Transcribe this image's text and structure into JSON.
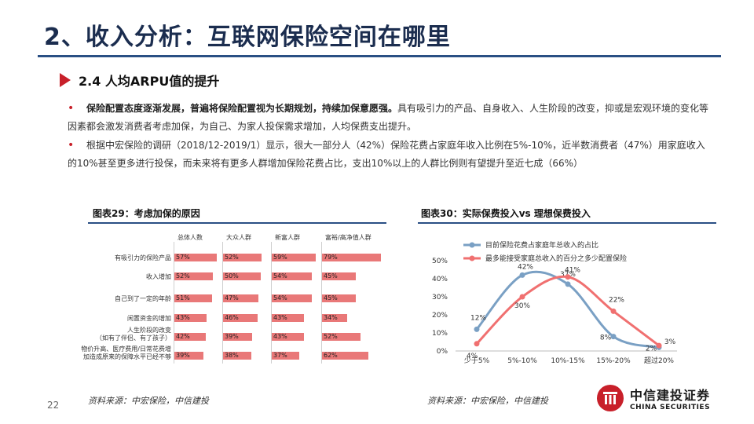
{
  "slide": {
    "title": "2、收入分析：互联网保险空间在哪里",
    "subhead": "2.4 人均ARPU值的提升",
    "page_number": "22"
  },
  "bullets": [
    {
      "bold": "保险配置态度逐渐发展，普遍将保险配置视为长期规划，持续加保意愿强。",
      "rest": "具有吸引力的产品、自身收入、人生阶段的改变，抑或是宏观环境的变化等因素都会激发消费者考虑加保，为自己、为家人投保需求增加，人均保费支出提升。"
    },
    {
      "bold": "",
      "rest": "根据中宏保险的调研（2018/12-2019/1）显示，很大一部分人（42%）保险花费占家庭年收入比例在5%-10%，近半数消费者（47%）用家庭收入的10%甚至更多进行投保，而未来将有更多人群增加保险花费占比，支出10%以上的人群比例则有望提升至近七成（66%）"
    }
  ],
  "fig29": {
    "title": "图表29：考虑加保的原因",
    "source": "资料来源：中宏保险，中信建投"
  },
  "fig30": {
    "title": "图表30：实际保费投入vs 理想保费投入",
    "source": "资料来源：中宏保险，中信建投"
  },
  "logo": {
    "cn": "中信建投证券",
    "en": "CHINA SECURITIES"
  },
  "chart_data": [
    {
      "type": "bar",
      "orientation": "horizontal",
      "title": "图表29：考虑加保的原因",
      "series_names": [
        "总体人数",
        "大众人群",
        "新富人群",
        "富裕/高净值人群"
      ],
      "categories": [
        "有吸引力的保险产品",
        "收入增加",
        "自己到了一定的年龄",
        "闲置资金的增加",
        "人生阶段的改变（如有了伴侣、有了孩子）",
        "物价升高、医疗费用/日常花费增加造成原来的保障水平已经不够"
      ],
      "category_lines": [
        [
          "有吸引力的保险产品"
        ],
        [
          "收入增加"
        ],
        [
          "自己到了一定的年龄"
        ],
        [
          "闲置资金的增加"
        ],
        [
          "人生阶段的改变",
          "（如有了伴侣、有了孩子）"
        ],
        [
          "物价升高、医疗费用/日常花费增",
          "加造成原来的保障水平已经不够"
        ]
      ],
      "values": [
        [
          57,
          52,
          59,
          79
        ],
        [
          52,
          50,
          54,
          45
        ],
        [
          51,
          47,
          54,
          45
        ],
        [
          43,
          46,
          43,
          34
        ],
        [
          42,
          39,
          43,
          52
        ],
        [
          39,
          38,
          37,
          62
        ]
      ],
      "value_labels": [
        [
          "57%",
          "52%",
          "59%",
          "79%"
        ],
        [
          "52%",
          "50%",
          "54%",
          "45%"
        ],
        [
          "51%",
          "47%",
          "54%",
          "45%"
        ],
        [
          "43%",
          "46%",
          "43%",
          "34%"
        ],
        [
          "42%",
          "39%",
          "43%",
          "52%"
        ],
        [
          "39%",
          "38%",
          "37%",
          "62%"
        ]
      ],
      "color": "#e97878"
    },
    {
      "type": "line",
      "title": "图表30：实际保费投入vs 理想保费投入",
      "categories": [
        "少于5%",
        "5%-10%",
        "10%-15%",
        "15%-20%",
        "超过20%"
      ],
      "ylim": [
        0,
        50
      ],
      "yticks": [
        "0%",
        "10%",
        "20%",
        "30%",
        "40%",
        "50%"
      ],
      "series": [
        {
          "name": "目前保险花费占家庭年总收入的占比",
          "values": [
            12,
            42,
            37,
            8,
            2
          ],
          "labels": [
            "12%",
            "42%",
            "37%",
            "8%",
            "2%"
          ],
          "color": "#7aa0c4"
        },
        {
          "name": "最多能接受家庭总收入的百分之多少配置保险",
          "values": [
            4,
            30,
            41,
            22,
            3
          ],
          "labels": [
            "4%",
            "30%",
            "41%",
            "22%",
            "3%"
          ],
          "color": "#f07070"
        }
      ],
      "legend": "top",
      "grid": false
    }
  ]
}
